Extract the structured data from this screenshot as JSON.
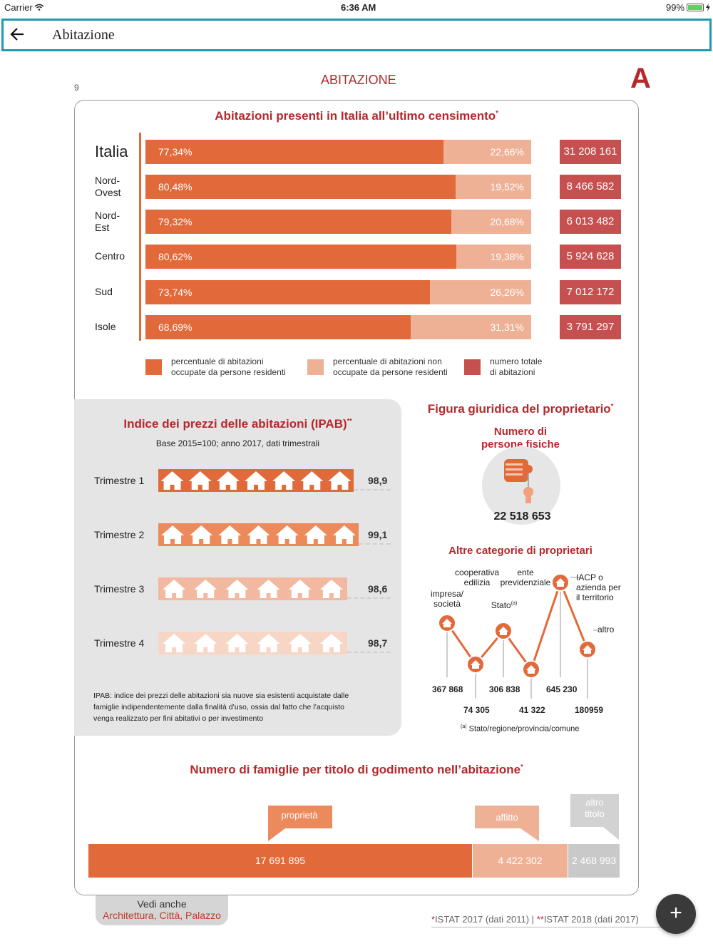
{
  "status": {
    "carrier": "Carrier",
    "time": "6:36 AM",
    "battery": "99%"
  },
  "nav": {
    "title": "Abitazione",
    "back_icon": "arrow-left-icon"
  },
  "page": {
    "number": "9",
    "header": "ABITAZIONE",
    "letter": "A"
  },
  "census": {
    "title": "Abitazioni presenti in Italia all’ultimo censimento",
    "title_mark": "*",
    "rows": [
      {
        "region": "Italia",
        "occupied": "77,34%",
        "occupied_value": 77.34,
        "unoccupied": "22,66%",
        "total": "31 208 161"
      },
      {
        "region": "Nord-\nOvest",
        "occupied": "80,48%",
        "occupied_value": 80.48,
        "unoccupied": "19,52%",
        "total": "8 466 582"
      },
      {
        "region": "Nord-\nEst",
        "occupied": "79,32%",
        "occupied_value": 79.32,
        "unoccupied": "20,68%",
        "total": "6 013 482"
      },
      {
        "region": "Centro",
        "occupied": "80,62%",
        "occupied_value": 80.62,
        "unoccupied": "19,38%",
        "total": "5 924 628"
      },
      {
        "region": "Sud",
        "occupied": "73,74%",
        "occupied_value": 73.74,
        "unoccupied": "26,26%",
        "total": "7 012 172"
      },
      {
        "region": "Isole",
        "occupied": "68,69%",
        "occupied_value": 68.69,
        "unoccupied": "31,31%",
        "total": "3 791 297"
      }
    ],
    "legend": [
      {
        "label": "percentuale di abitazioni\noccupate da persone residenti",
        "color": "#e2693a"
      },
      {
        "label": "percentuale di abitazioni non\noccupate da persone residenti",
        "color": "#efb196"
      },
      {
        "label": "numero totale\ndi abitazioni",
        "color": "#c6504f"
      }
    ]
  },
  "ipab": {
    "title": "Indice dei prezzi delle abitazioni (IPAB)",
    "title_mark": "**",
    "subtitle": "Base 2015=100; anno 2017, dati trimestrali",
    "rows": [
      {
        "label": "Trimestre 1",
        "value": "98,9",
        "color": "#e2693a"
      },
      {
        "label": "Trimestre 2",
        "value": "99,1",
        "color": "#ec8a5c"
      },
      {
        "label": "Trimestre 3",
        "value": "98,6",
        "color": "#f3b9a0"
      },
      {
        "label": "Trimestre 4",
        "value": "98,7",
        "color": "#f8d6c6"
      }
    ],
    "note": "IPAB: indice dei prezzi delle abitazioni sia nuove sia esistenti acquistate dalle famiglie indipendentemente dalla finalità d’uso, ossia dal fatto che l’acquisto venga realizzato per fini abitativi o per investimento"
  },
  "owner": {
    "title": "Figura giuridica del proprietario",
    "title_mark": "*",
    "persons_label": "Numero di\npersone fisiche",
    "persons_value": "22 518 653",
    "persons_icon": "hand-with-key-icon",
    "others_title": "Altre categorie di proprietari",
    "categories": [
      {
        "label": "impresa/\nsocietà",
        "value": "367 868"
      },
      {
        "label": "cooperativa\nedilizia",
        "value": "74 305"
      },
      {
        "label": "Stato",
        "label_mark": "(a)",
        "value": "306 838"
      },
      {
        "label": "ente\nprevidenziale",
        "value": "41 322"
      },
      {
        "label": "IACP o\nazienda per\nil territorio",
        "value": "645 230"
      },
      {
        "label": "altro",
        "value": "180959"
      }
    ],
    "footnote_mark": "(a)",
    "footnote": "Stato/regione/provincia/comune"
  },
  "families": {
    "title": "Numero di famiglie per titolo di godimento nell’abitazione",
    "title_mark": "*",
    "segments": [
      {
        "label": "proprietà",
        "value": "17 691 895"
      },
      {
        "label": "affitto",
        "value": "4 422 302"
      },
      {
        "label": "altro\ntitolo",
        "value": "2 468 993"
      }
    ]
  },
  "see_also": {
    "label": "Vedi anche",
    "links": "Architettura, Città, Palazzo"
  },
  "sources": {
    "mark1": "*",
    "source1": "ISTAT 2017 (dati 2011) |",
    "mark2": "**",
    "source2": "ISTAT 2018 (dati 2017)"
  },
  "fab": {
    "label": "+"
  },
  "colors": {
    "accent": "#b5282c",
    "occupied": "#e2693a",
    "unoccupied": "#efb196",
    "total": "#c6504f",
    "nav_border": "#1e9ab0"
  }
}
